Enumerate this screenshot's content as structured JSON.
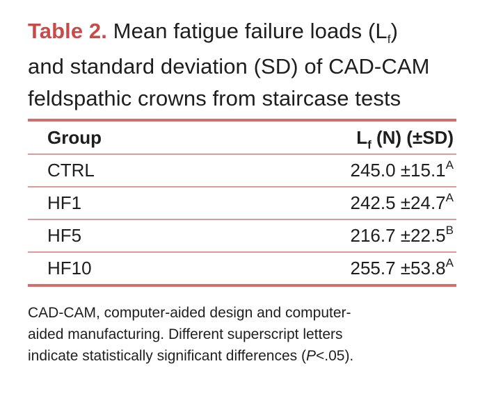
{
  "table": {
    "label": "Table 2.",
    "title_a": " Mean fatigue failure loads (L",
    "title_sub": "f",
    "title_b": ")",
    "title_line2": "and standard deviation (SD) of CAD-CAM",
    "title_line3": "feldspathic crowns from staircase tests",
    "col_group": "Group",
    "col_value_a": "L",
    "col_value_sub": "f",
    "col_value_b": " (N) (±SD)",
    "rows": [
      {
        "group": "CTRL",
        "value": "245.0 ±15.1",
        "sig": "A"
      },
      {
        "group": "HF1",
        "value": "242.5 ±24.7",
        "sig": "A"
      },
      {
        "group": "HF5",
        "value": "216.7 ±22.5",
        "sig": "B"
      },
      {
        "group": "HF10",
        "value": "255.7 ±53.8",
        "sig": "A"
      }
    ]
  },
  "footnote": {
    "line1": "CAD-CAM, computer-aided design and computer-",
    "line2": "aided manufacturing. Different superscript letters",
    "line3_a": "indicate statistically significant differences (",
    "line3_p": "P",
    "line3_b": "<.05)."
  },
  "colors": {
    "label": "#c94a49",
    "rule": "#d86b6b"
  }
}
